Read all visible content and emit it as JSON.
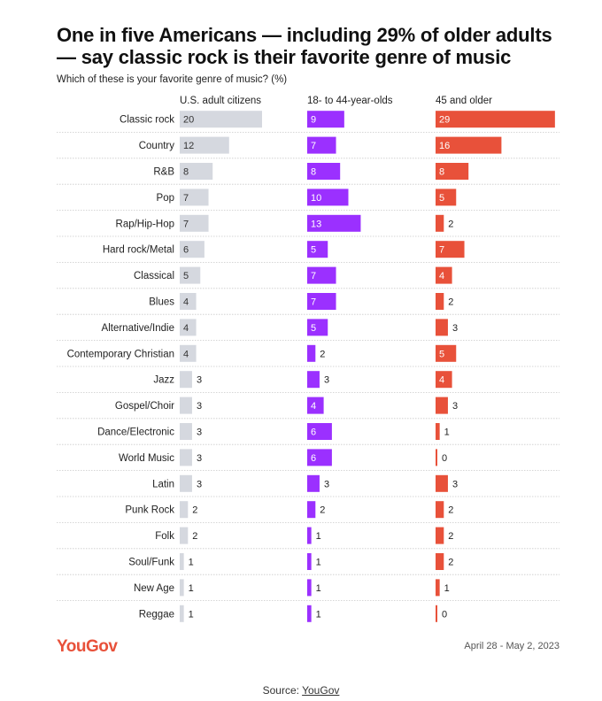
{
  "chart_data": {
    "type": "bar",
    "title": "One in five Americans — including 29% of older adults — say classic rock is their favorite genre of music",
    "subtitle": "Which of these is your favorite genre of music? (%)",
    "categories": [
      "Classic rock",
      "Country",
      "R&B",
      "Pop",
      "Rap/Hip-Hop",
      "Hard rock/Metal",
      "Classical",
      "Blues",
      "Alternative/Indie",
      "Contemporary Christian",
      "Jazz",
      "Gospel/Choir",
      "Dance/Electronic",
      "World Music",
      "Latin",
      "Punk Rock",
      "Folk",
      "Soul/Funk",
      "New Age",
      "Reggae"
    ],
    "series": [
      {
        "name": "U.S. adult citizens",
        "color": "#d5d8df",
        "values": [
          20,
          12,
          8,
          7,
          7,
          6,
          5,
          4,
          4,
          4,
          3,
          3,
          3,
          3,
          3,
          2,
          2,
          1,
          1,
          1
        ]
      },
      {
        "name": "18- to 44-year-olds",
        "color": "#9b30ff",
        "values": [
          9,
          7,
          8,
          10,
          13,
          5,
          7,
          7,
          5,
          2,
          3,
          4,
          6,
          6,
          3,
          2,
          1,
          1,
          1,
          1
        ]
      },
      {
        "name": "45 and older",
        "color": "#e8513a",
        "values": [
          29,
          16,
          8,
          5,
          2,
          7,
          4,
          2,
          3,
          5,
          4,
          3,
          1,
          0,
          3,
          2,
          2,
          2,
          1,
          0
        ]
      }
    ],
    "grid": true
  },
  "footer": {
    "logo": "YouGov",
    "date": "April 28 - May 2, 2023",
    "source_prefix": "Source: ",
    "source_link": "YouGov"
  }
}
